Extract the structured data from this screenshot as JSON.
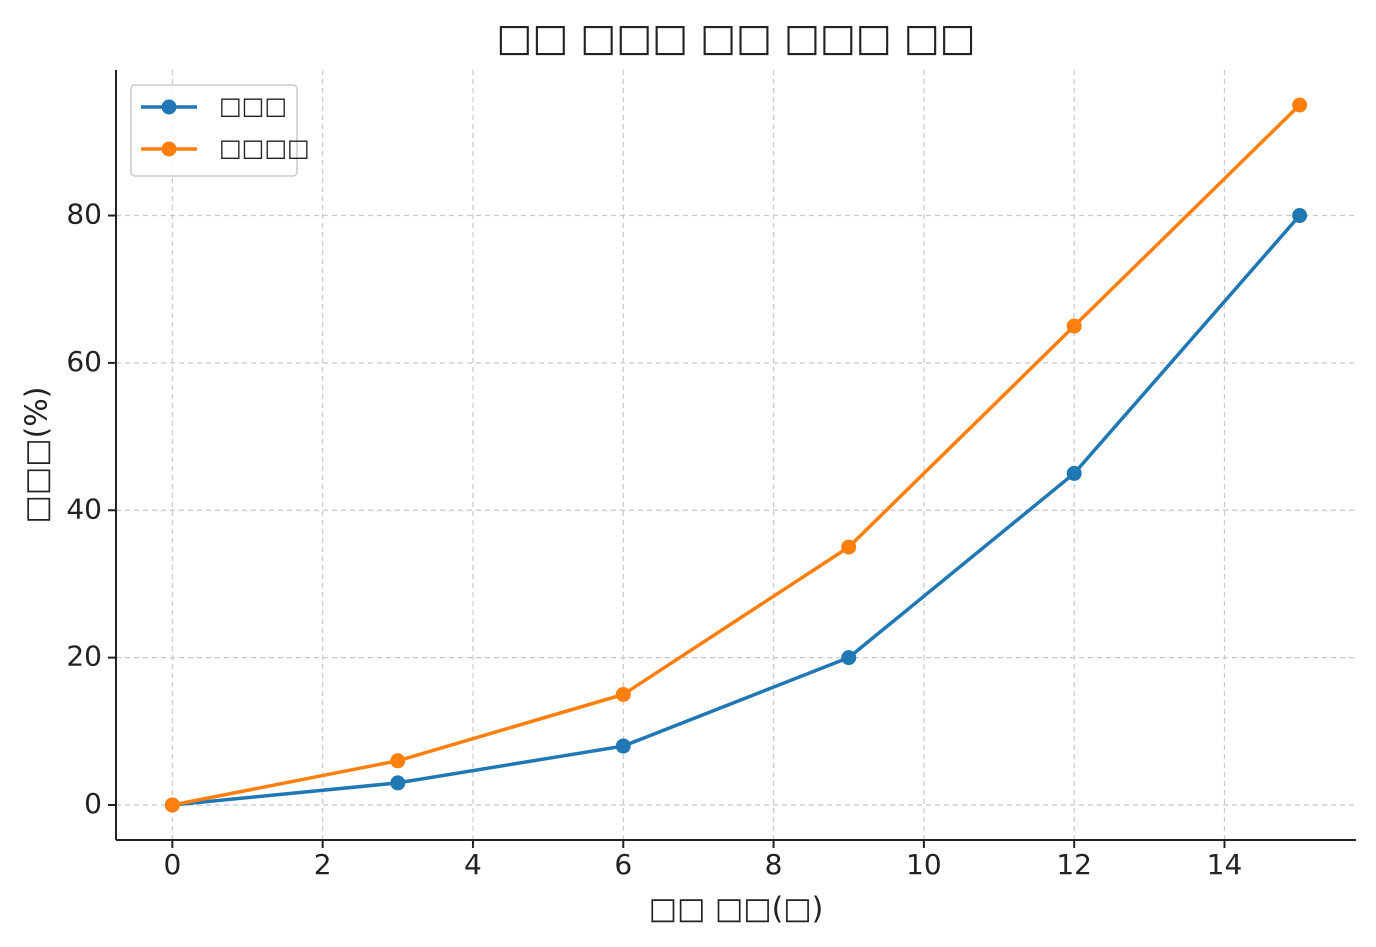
{
  "chart_data": {
    "type": "line",
    "title": "□□ □□□ □□ □□□ □□",
    "xlabel": "□□ □□(□)",
    "ylabel": "□□□(%)",
    "x": [
      0,
      3,
      6,
      9,
      12,
      15
    ],
    "series": [
      {
        "name": "□□□",
        "color": "#1f77b4",
        "values": [
          0,
          3,
          8,
          20,
          45,
          80
        ]
      },
      {
        "name": "□□□□",
        "color": "#ff7f0e",
        "values": [
          0,
          6,
          15,
          35,
          65,
          95
        ]
      }
    ],
    "xlim": [
      -0.75,
      15.75
    ],
    "xticks": [
      0,
      2,
      4,
      6,
      8,
      10,
      12,
      14
    ],
    "ylim": [
      -4.75,
      99.75
    ],
    "yticks": [
      0,
      20,
      40,
      60,
      80
    ],
    "grid": true,
    "legend": "upper left"
  }
}
